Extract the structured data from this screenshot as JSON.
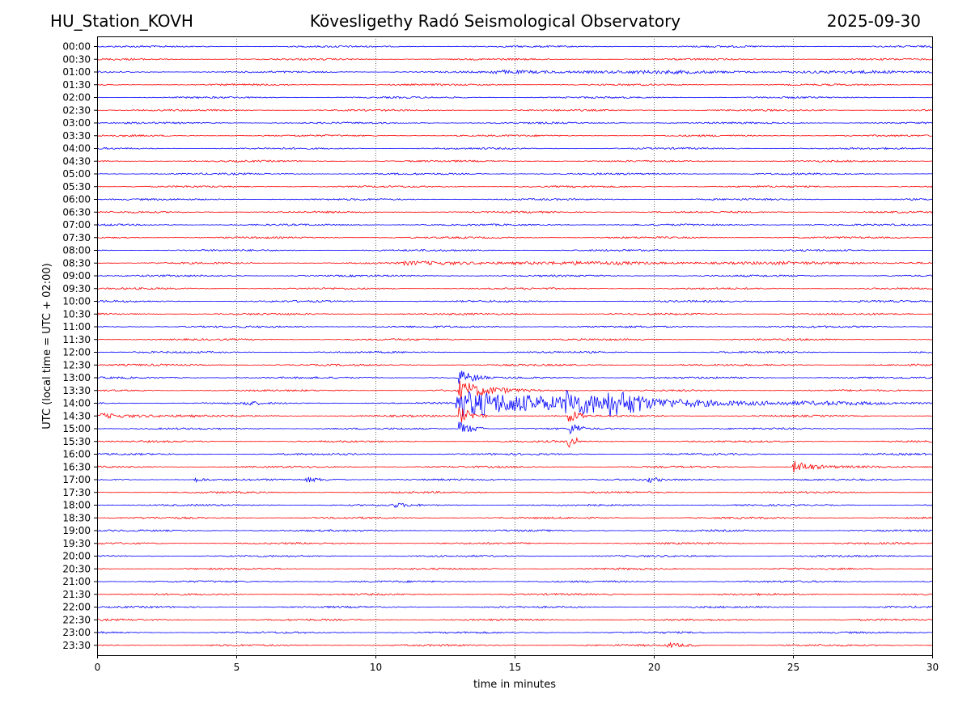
{
  "header": {
    "station": "HU_Station_KOVH",
    "observatory": "Kövesligethy Radó Seismological Observatory",
    "date": "2025-09-30"
  },
  "chart_data": {
    "type": "line",
    "title": "Kövesligethy Radó Seismological Observatory",
    "xlabel": "time in minutes",
    "ylabel": "UTC (local time = UTC + 02:00)",
    "xlim": [
      0,
      30
    ],
    "x_ticks": [
      0,
      5,
      10,
      15,
      20,
      25,
      30
    ],
    "grid": "vertical dotted lines at x ticks",
    "row_labels": [
      "00:00",
      "00:30",
      "01:00",
      "01:30",
      "02:00",
      "02:30",
      "03:00",
      "03:30",
      "04:00",
      "04:30",
      "05:00",
      "05:30",
      "06:00",
      "06:30",
      "07:00",
      "07:30",
      "08:00",
      "08:30",
      "09:00",
      "09:30",
      "10:00",
      "10:30",
      "11:00",
      "11:30",
      "12:00",
      "12:30",
      "13:00",
      "13:30",
      "14:00",
      "14:30",
      "15:00",
      "15:30",
      "16:00",
      "16:30",
      "17:00",
      "17:30",
      "18:00",
      "18:30",
      "19:00",
      "19:30",
      "20:00",
      "20:30",
      "21:00",
      "21:30",
      "22:00",
      "22:30",
      "23:00",
      "23:30"
    ],
    "row_colors": [
      "#0000ff",
      "#ff0000"
    ],
    "noise_amplitude": 1.2,
    "events": [
      {
        "row": "01:00",
        "start": 14.0,
        "end": 30.0,
        "peak": 1.4,
        "decay": 0.05
      },
      {
        "row": "08:30",
        "start": 11.0,
        "end": 30.0,
        "peak": 1.5,
        "decay": 0.05
      },
      {
        "row": "13:00",
        "start": 13.0,
        "end": 14.0,
        "peak": 10,
        "decay": 2.0
      },
      {
        "row": "13:30",
        "start": 13.0,
        "end": 18.0,
        "peak": 12,
        "decay": 1.0
      },
      {
        "row": "14:00",
        "start": 5.25,
        "end": 5.9,
        "peak": 4,
        "decay": 3.0
      },
      {
        "row": "14:00",
        "start": 12.9,
        "end": 30.0,
        "peak": 16,
        "decay": 0.18
      },
      {
        "row": "14:00",
        "start": 16.8,
        "end": 25.0,
        "peak": 10,
        "decay": 0.7
      },
      {
        "row": "14:00",
        "start": 18.3,
        "end": 19.6,
        "peak": 7,
        "decay": 0.4
      },
      {
        "row": "14:30",
        "start": 0.0,
        "end": 3.5,
        "peak": 3.5,
        "decay": 0.6
      },
      {
        "row": "14:30",
        "start": 13.0,
        "end": 14.0,
        "peak": 11,
        "decay": 2.0
      },
      {
        "row": "14:30",
        "start": 16.9,
        "end": 17.6,
        "peak": 9,
        "decay": 2.0
      },
      {
        "row": "15:00",
        "start": 13.0,
        "end": 14.0,
        "peak": 9,
        "decay": 2.0
      },
      {
        "row": "15:00",
        "start": 17.0,
        "end": 17.5,
        "peak": 7,
        "decay": 2.0
      },
      {
        "row": "15:30",
        "start": 16.9,
        "end": 17.3,
        "peak": 8,
        "decay": 2.5
      },
      {
        "row": "16:30",
        "start": 25.0,
        "end": 28.0,
        "peak": 8,
        "decay": 1.5
      },
      {
        "row": "17:00",
        "start": 3.5,
        "end": 4.2,
        "peak": 3,
        "decay": 3.0
      },
      {
        "row": "17:00",
        "start": 7.5,
        "end": 9.0,
        "peak": 3,
        "decay": 1.5
      },
      {
        "row": "17:00",
        "start": 19.8,
        "end": 20.3,
        "peak": 3,
        "decay": 3.0
      },
      {
        "row": "18:00",
        "start": 10.6,
        "end": 11.6,
        "peak": 2.5,
        "decay": 2.0
      },
      {
        "row": "23:30",
        "start": 20.5,
        "end": 21.6,
        "peak": 3,
        "decay": 1.5
      }
    ]
  }
}
